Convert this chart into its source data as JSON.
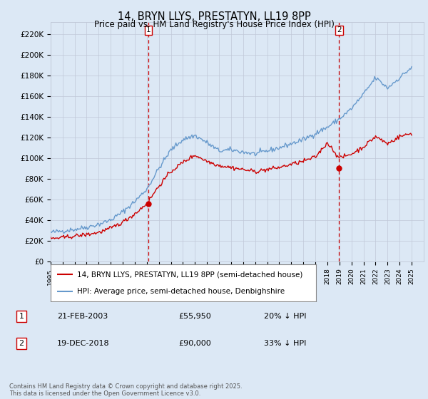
{
  "title": "14, BRYN LLYS, PRESTATYN, LL19 8PP",
  "subtitle": "Price paid vs. HM Land Registry's House Price Index (HPI)",
  "ylabel_ticks": [
    "£0",
    "£20K",
    "£40K",
    "£60K",
    "£80K",
    "£100K",
    "£120K",
    "£140K",
    "£160K",
    "£180K",
    "£200K",
    "£220K"
  ],
  "ytick_vals": [
    0,
    20000,
    40000,
    60000,
    80000,
    100000,
    120000,
    140000,
    160000,
    180000,
    200000,
    220000
  ],
  "ylim": [
    0,
    232000
  ],
  "sale1_date": 2003.13,
  "sale1_price": 55950,
  "sale1_label": "1",
  "sale2_date": 2018.97,
  "sale2_price": 90000,
  "sale2_label": "2",
  "legend_line1": "14, BRYN LLYS, PRESTATYN, LL19 8PP (semi-detached house)",
  "legend_line2": "HPI: Average price, semi-detached house, Denbighshire",
  "table_row1": [
    "1",
    "21-FEB-2003",
    "£55,950",
    "20% ↓ HPI"
  ],
  "table_row2": [
    "2",
    "19-DEC-2018",
    "£90,000",
    "33% ↓ HPI"
  ],
  "footer": "Contains HM Land Registry data © Crown copyright and database right 2025.\nThis data is licensed under the Open Government Licence v3.0.",
  "hpi_color": "#6699cc",
  "price_color": "#cc0000",
  "bg_color": "#dce8f5",
  "grid_color": "#c0c8d8",
  "vline_color": "#cc0000",
  "xmin": 1995,
  "xmax": 2026,
  "hpi_key_years": [
    1995,
    1996,
    1997,
    1998,
    1999,
    2000,
    2001,
    2002,
    2003,
    2004,
    2005,
    2006,
    2007,
    2008,
    2009,
    2010,
    2011,
    2012,
    2013,
    2014,
    2015,
    2016,
    2017,
    2018,
    2019,
    2020,
    2021,
    2022,
    2023,
    2024,
    2025
  ],
  "hpi_key_vals": [
    28000,
    29500,
    31000,
    33000,
    36000,
    40000,
    48000,
    58000,
    70000,
    90000,
    108000,
    118000,
    122000,
    115000,
    107000,
    108000,
    106000,
    104000,
    107000,
    110000,
    114000,
    118000,
    124000,
    130000,
    138000,
    148000,
    162000,
    178000,
    168000,
    178000,
    188000
  ],
  "price_key_years": [
    1995,
    1996,
    1997,
    1998,
    1999,
    2000,
    2001,
    2002,
    2003,
    2004,
    2005,
    2006,
    2007,
    2008,
    2009,
    2010,
    2011,
    2012,
    2013,
    2014,
    2015,
    2016,
    2017,
    2018,
    2019,
    2020,
    2021,
    2022,
    2023,
    2024,
    2025
  ],
  "price_key_vals": [
    22000,
    23000,
    24500,
    26000,
    28000,
    32000,
    38000,
    46000,
    56000,
    73000,
    87000,
    96000,
    103000,
    97000,
    93000,
    91000,
    89000,
    87000,
    89000,
    91000,
    94000,
    97000,
    101000,
    115000,
    100000,
    104000,
    111000,
    121000,
    114000,
    121000,
    124000
  ],
  "hpi_noise_std": 1200,
  "price_noise_std": 1000,
  "random_seed": 42
}
